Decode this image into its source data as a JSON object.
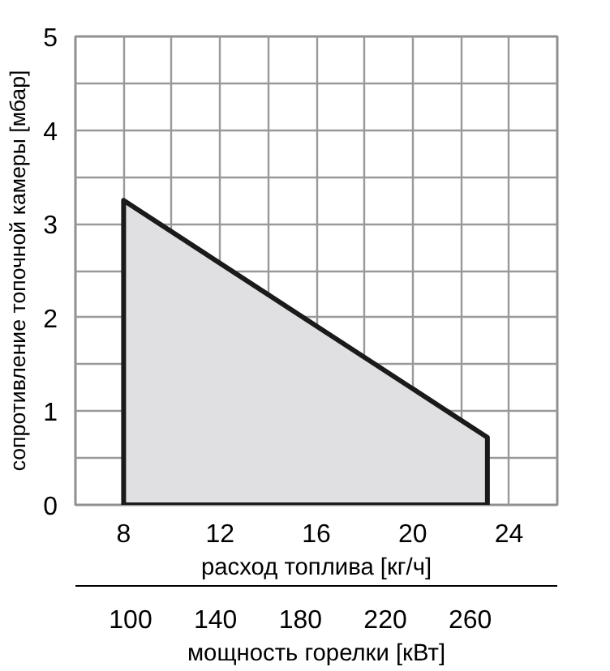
{
  "chart_data": {
    "type": "area",
    "xlabel": "расход топлива [кг/ч]",
    "ylabel": "сопротивление топочной камеры [мбар]",
    "x2label": "мощность горелки [кВт]",
    "x": [
      8,
      23.1
    ],
    "series": [
      {
        "color": "#e0e0e2",
        "values": [
          3.25,
          0.72
        ]
      }
    ],
    "xlim": [
      6,
      26
    ],
    "xticks": [
      {
        "value": 6,
        "label": null
      },
      8,
      {
        "value": 10,
        "label": null
      },
      12,
      {
        "value": 14,
        "label": null
      },
      16,
      {
        "value": 18,
        "label": null
      },
      20,
      {
        "value": 22,
        "label": null
      },
      24,
      {
        "value": 26,
        "label": null
      }
    ],
    "ylim": [
      0,
      5
    ],
    "yticks": [
      0,
      {
        "value": 0.5,
        "label": null
      },
      1,
      {
        "value": 1.5,
        "label": null
      },
      2,
      {
        "value": 2.5,
        "label": null
      },
      3,
      {
        "value": 3.5,
        "label": null
      },
      4,
      {
        "value": 4.5,
        "label": null
      },
      5
    ],
    "x2lim": [
      74,
      301
    ],
    "x2ticks": [
      100,
      140,
      180,
      220,
      260
    ],
    "grid": true,
    "line_style": "solid",
    "marker": "none"
  }
}
